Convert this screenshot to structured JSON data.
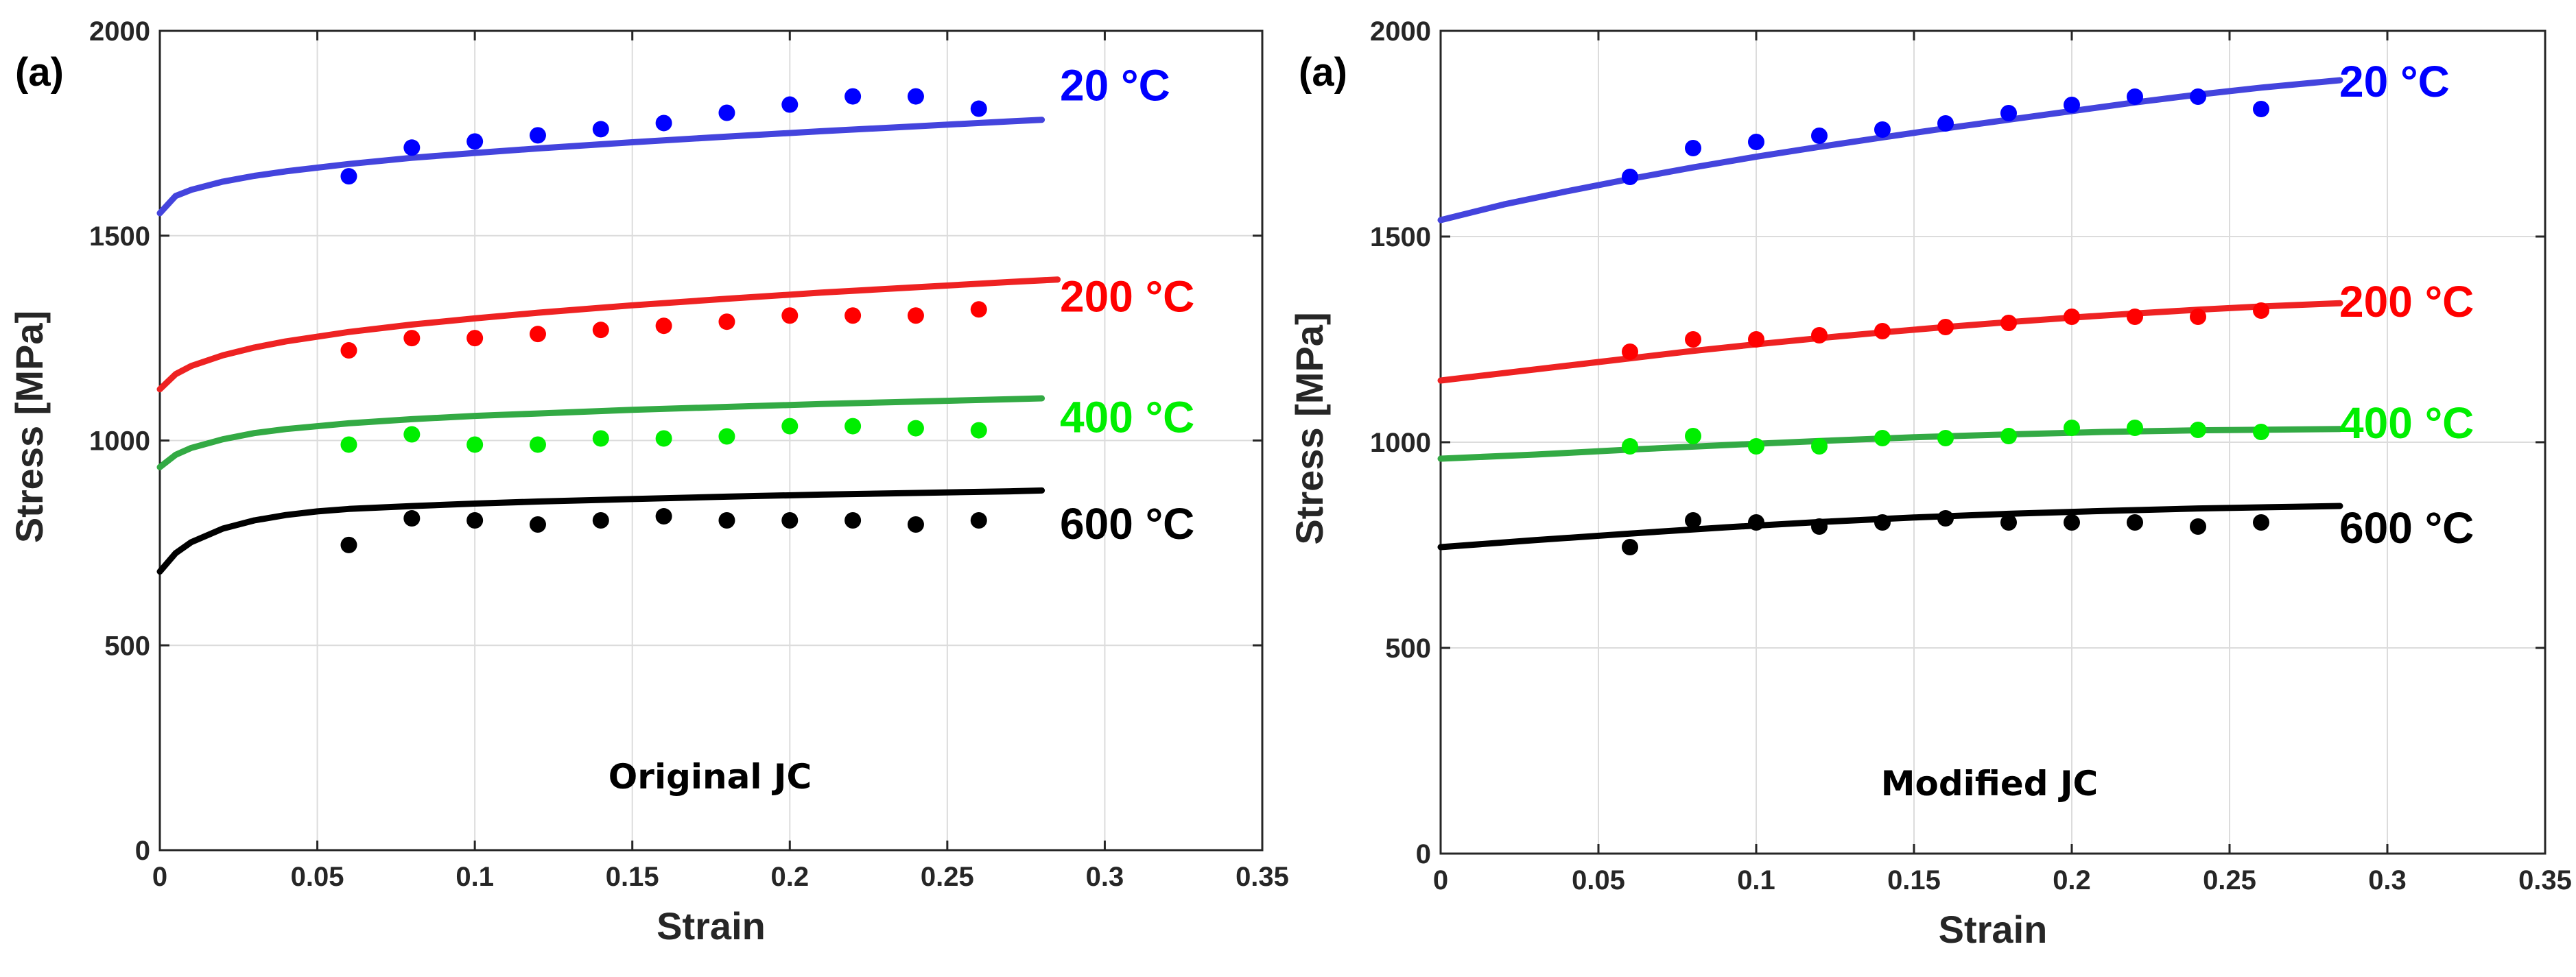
{
  "colors": {
    "blue": "#0000ff",
    "red": "#ff0000",
    "green": "#00ee00",
    "black": "#000000",
    "line_blue": "#4444dd",
    "line_red": "#ee2222",
    "line_green": "#33aa44",
    "line_black": "#000000"
  },
  "chart_data": [
    {
      "type": "line",
      "panel_label": "(a)",
      "annotation": "Original JC",
      "xlabel": "Strain",
      "ylabel": "Stress [MPa]",
      "xlim": [
        0,
        0.35
      ],
      "ylim": [
        0,
        2000
      ],
      "xticks": [
        0,
        0.05,
        0.1,
        0.15,
        0.2,
        0.25,
        0.3,
        0.35
      ],
      "xtick_labels": [
        "0",
        "0.05",
        "0.1",
        "0.15",
        "0.2",
        "0.25",
        "0.3",
        "0.35"
      ],
      "yticks": [
        0,
        500,
        1000,
        1500,
        2000
      ],
      "ytick_labels": [
        "0",
        "500",
        "1000",
        "1500",
        "2000"
      ],
      "grid": true,
      "series": [
        {
          "name": "20 °C",
          "color_key": "blue",
          "line_color_key": "line_blue",
          "label_y": 1830,
          "points_x": [
            0.06,
            0.08,
            0.1,
            0.12,
            0.14,
            0.16,
            0.18,
            0.2,
            0.22,
            0.24,
            0.26
          ],
          "points_y": [
            1645,
            1715,
            1730,
            1745,
            1760,
            1775,
            1800,
            1820,
            1840,
            1840,
            1810
          ],
          "curve_x": [
            0,
            0.005,
            0.01,
            0.02,
            0.03,
            0.04,
            0.06,
            0.08,
            0.1,
            0.12,
            0.15,
            0.18,
            0.21,
            0.24,
            0.27,
            0.28
          ],
          "curve_y": [
            1555,
            1597,
            1612,
            1632,
            1646,
            1657,
            1675,
            1690,
            1702,
            1713,
            1728,
            1742,
            1755,
            1767,
            1779,
            1783
          ]
        },
        {
          "name": "200 °C",
          "color_key": "red",
          "line_color_key": "line_red",
          "label_y": 1315,
          "points_x": [
            0.06,
            0.08,
            0.1,
            0.12,
            0.14,
            0.16,
            0.18,
            0.2,
            0.22,
            0.24,
            0.26
          ],
          "points_y": [
            1220,
            1250,
            1250,
            1260,
            1270,
            1280,
            1290,
            1305,
            1305,
            1305,
            1320
          ],
          "curve_x": [
            0,
            0.005,
            0.01,
            0.02,
            0.03,
            0.04,
            0.06,
            0.08,
            0.1,
            0.12,
            0.15,
            0.18,
            0.21,
            0.24,
            0.27,
            0.285
          ],
          "curve_y": [
            1125,
            1162,
            1182,
            1208,
            1227,
            1242,
            1265,
            1283,
            1298,
            1312,
            1330,
            1346,
            1361,
            1374,
            1387,
            1393
          ]
        },
        {
          "name": "400 °C",
          "color_key": "green",
          "line_color_key": "line_green",
          "label_y": 1020,
          "points_x": [
            0.06,
            0.08,
            0.1,
            0.12,
            0.14,
            0.16,
            0.18,
            0.2,
            0.22,
            0.24,
            0.26
          ],
          "points_y": [
            990,
            1015,
            990,
            990,
            1005,
            1005,
            1010,
            1035,
            1035,
            1030,
            1025
          ],
          "curve_x": [
            0,
            0.005,
            0.01,
            0.02,
            0.03,
            0.04,
            0.06,
            0.08,
            0.1,
            0.12,
            0.15,
            0.18,
            0.21,
            0.24,
            0.27,
            0.28
          ],
          "curve_y": [
            935,
            965,
            982,
            1003,
            1018,
            1028,
            1042,
            1052,
            1060,
            1066,
            1075,
            1082,
            1089,
            1095,
            1101,
            1103
          ]
        },
        {
          "name": "600 °C",
          "color_key": "black",
          "line_color_key": "line_black",
          "label_y": 760,
          "points_x": [
            0.06,
            0.08,
            0.1,
            0.12,
            0.14,
            0.16,
            0.18,
            0.2,
            0.22,
            0.24,
            0.26
          ],
          "points_y": [
            745,
            810,
            805,
            795,
            805,
            815,
            805,
            805,
            805,
            795,
            805
          ],
          "curve_x": [
            0,
            0.005,
            0.01,
            0.02,
            0.03,
            0.04,
            0.05,
            0.06,
            0.08,
            0.1,
            0.12,
            0.15,
            0.18,
            0.21,
            0.24,
            0.27,
            0.28
          ],
          "curve_y": [
            680,
            725,
            752,
            785,
            805,
            818,
            827,
            833,
            840,
            846,
            851,
            857,
            863,
            868,
            872,
            876,
            878
          ]
        }
      ]
    },
    {
      "type": "line",
      "panel_label": "(a)",
      "annotation": "Modified JC",
      "xlabel": "Strain",
      "ylabel": "Stress [MPa]",
      "xlim": [
        0,
        0.35
      ],
      "ylim": [
        0,
        2000
      ],
      "xticks": [
        0,
        0.05,
        0.1,
        0.15,
        0.2,
        0.25,
        0.3,
        0.35
      ],
      "xtick_labels": [
        "0",
        "0.05",
        "0.1",
        "0.15",
        "0.2",
        "0.25",
        "0.3",
        "0.35"
      ],
      "yticks": [
        0,
        500,
        1000,
        1500,
        2000
      ],
      "ytick_labels": [
        "0",
        "500",
        "1000",
        "1500",
        "2000"
      ],
      "grid": true,
      "series": [
        {
          "name": "20 °C",
          "color_key": "blue",
          "line_color_key": "line_blue",
          "label_y": 1840,
          "points_x": [
            0.06,
            0.08,
            0.1,
            0.12,
            0.14,
            0.16,
            0.18,
            0.2,
            0.22,
            0.24,
            0.26
          ],
          "points_y": [
            1645,
            1715,
            1730,
            1745,
            1760,
            1775,
            1800,
            1820,
            1840,
            1840,
            1810
          ],
          "curve_x": [
            0,
            0.02,
            0.04,
            0.06,
            0.08,
            0.1,
            0.12,
            0.14,
            0.16,
            0.18,
            0.2,
            0.22,
            0.24,
            0.26,
            0.285
          ],
          "curve_y": [
            1540,
            1578,
            1610,
            1640,
            1668,
            1694,
            1718,
            1741,
            1763,
            1784,
            1805,
            1826,
            1845,
            1862,
            1880
          ]
        },
        {
          "name": "200 °C",
          "color_key": "red",
          "line_color_key": "line_red",
          "label_y": 1305,
          "points_x": [
            0.06,
            0.08,
            0.1,
            0.12,
            0.14,
            0.16,
            0.18,
            0.2,
            0.22,
            0.24,
            0.26
          ],
          "points_y": [
            1220,
            1250,
            1250,
            1260,
            1270,
            1280,
            1290,
            1305,
            1305,
            1305,
            1320
          ],
          "curve_x": [
            0,
            0.02,
            0.04,
            0.06,
            0.08,
            0.1,
            0.12,
            0.14,
            0.16,
            0.18,
            0.2,
            0.22,
            0.24,
            0.26,
            0.285
          ],
          "curve_y": [
            1150,
            1168,
            1186,
            1204,
            1222,
            1238,
            1253,
            1267,
            1280,
            1292,
            1303,
            1313,
            1322,
            1330,
            1338
          ]
        },
        {
          "name": "400 °C",
          "color_key": "green",
          "line_color_key": "line_green",
          "label_y": 1010,
          "points_x": [
            0.06,
            0.08,
            0.1,
            0.12,
            0.14,
            0.16,
            0.18,
            0.2,
            0.22,
            0.24,
            0.26
          ],
          "points_y": [
            990,
            1015,
            990,
            990,
            1010,
            1010,
            1015,
            1035,
            1035,
            1030,
            1025
          ],
          "curve_x": [
            0,
            0.03,
            0.06,
            0.09,
            0.12,
            0.15,
            0.18,
            0.21,
            0.24,
            0.27,
            0.285
          ],
          "curve_y": [
            960,
            970,
            982,
            993,
            1003,
            1012,
            1019,
            1025,
            1029,
            1031,
            1032
          ]
        },
        {
          "name": "600 °C",
          "color_key": "black",
          "line_color_key": "line_black",
          "label_y": 755,
          "points_x": [
            0.06,
            0.08,
            0.1,
            0.12,
            0.14,
            0.16,
            0.18,
            0.2,
            0.22,
            0.24,
            0.26
          ],
          "points_y": [
            745,
            810,
            805,
            795,
            805,
            815,
            805,
            805,
            805,
            795,
            805
          ],
          "curve_x": [
            0,
            0.03,
            0.06,
            0.09,
            0.12,
            0.15,
            0.18,
            0.21,
            0.24,
            0.27,
            0.285
          ],
          "curve_y": [
            745,
            762,
            778,
            793,
            806,
            817,
            826,
            833,
            839,
            843,
            845
          ]
        }
      ]
    }
  ]
}
